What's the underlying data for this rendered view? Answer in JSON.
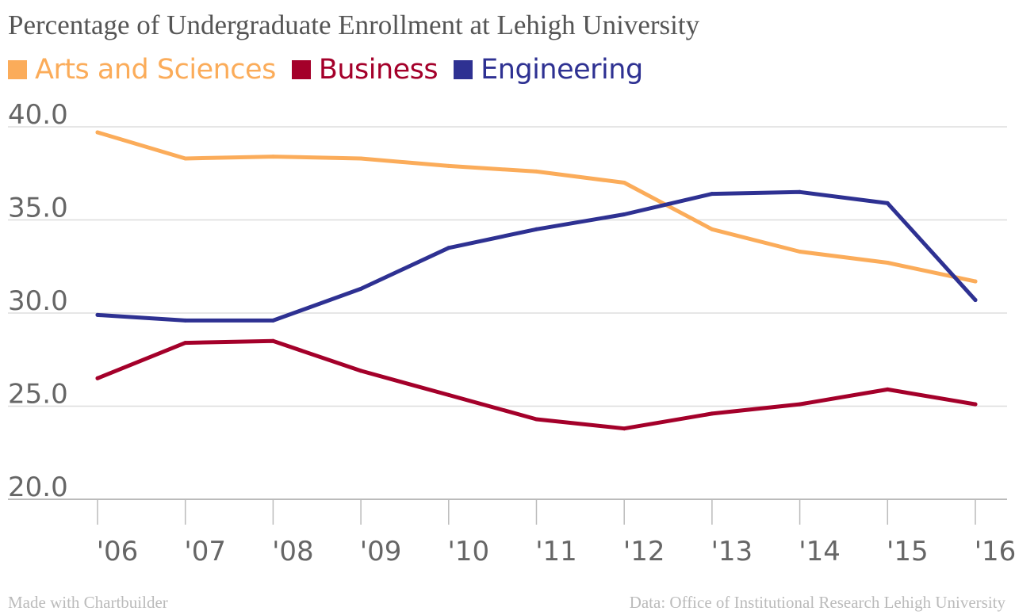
{
  "chart_data": {
    "type": "line",
    "title": "Percentage of Undergraduate Enrollment at Lehigh University",
    "categories": [
      "'06",
      "'07",
      "'08",
      "'09",
      "'10",
      "'11",
      "'12",
      "'13",
      "'14",
      "'15",
      "'16"
    ],
    "ylim": [
      20,
      40
    ],
    "yticks": [
      "20.0",
      "25.0",
      "30.0",
      "35.0",
      "40.0"
    ],
    "ytick_values": [
      20,
      25,
      30,
      35,
      40
    ],
    "grid": true,
    "legend_placement": "top-left",
    "series": [
      {
        "name": "Arts and Sciences",
        "color": "#fbac5a",
        "values": [
          39.7,
          38.3,
          38.4,
          38.3,
          37.9,
          37.6,
          37.0,
          34.5,
          33.3,
          32.7,
          31.7
        ]
      },
      {
        "name": "Business",
        "color": "#a4002a",
        "values": [
          26.5,
          28.4,
          28.5,
          26.9,
          25.6,
          24.3,
          23.8,
          24.6,
          25.1,
          25.9,
          25.1
        ]
      },
      {
        "name": "Engineering",
        "color": "#2e3192",
        "values": [
          29.9,
          29.6,
          29.6,
          31.3,
          33.5,
          34.5,
          35.3,
          36.4,
          36.5,
          35.9,
          30.7
        ]
      }
    ]
  },
  "footer": {
    "left": "Made with Chartbuilder",
    "right": "Data: Office of Institutional Research Lehigh University"
  }
}
